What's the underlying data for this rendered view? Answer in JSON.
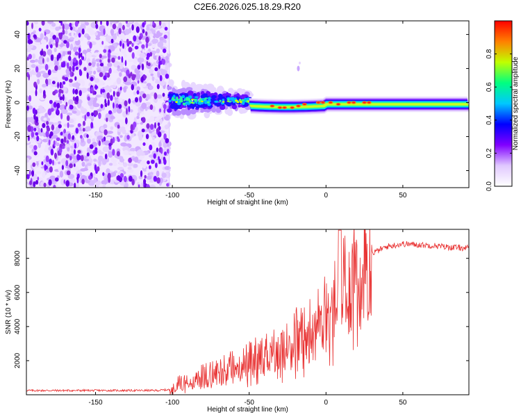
{
  "title": "C2E6.2026.025.18.29.R20",
  "chart_data": [
    {
      "type": "heatmap",
      "xlabel": "Height of straight line (km)",
      "ylabel": "Frequency (Hz)",
      "xlim": [
        -195,
        93
      ],
      "ylim": [
        -50,
        48
      ],
      "xticks": [
        -150,
        -100,
        -50,
        0,
        50
      ],
      "yticks": [
        -40,
        -20,
        0,
        20,
        40
      ],
      "colorbar": {
        "label": "Normalized spectral amplitude",
        "range": [
          0.0,
          1.0
        ],
        "ticks": [
          "0.0",
          "0.2",
          "0.4",
          "0.6",
          "0.8"
        ],
        "colors": [
          "#ffffff",
          "#e0c8ff",
          "#8000ff",
          "#0000ff",
          "#00c8ff",
          "#00ff80",
          "#c0ff00",
          "#ff8000",
          "#ff0000"
        ]
      },
      "regions": [
        {
          "name": "noise",
          "x_range": [
            -195,
            -102
          ],
          "freq_range": [
            -50,
            48
          ],
          "amplitude": 0.1
        },
        {
          "name": "signal-onset",
          "x_range": [
            -102,
            -50
          ],
          "freq_center": 0,
          "freq_halfwidth": 10,
          "amplitude": 0.45
        },
        {
          "name": "signal-track",
          "x_range": [
            -50,
            93
          ],
          "freq_center": -2,
          "freq_halfwidth": 3,
          "amplitude": 0.8
        },
        {
          "name": "isolated-blob",
          "x": -18,
          "freq": 20,
          "amplitude": 0.1
        }
      ]
    },
    {
      "type": "line",
      "xlabel": "Height of straight line (km)",
      "ylabel": "SNR (10 * v/v)",
      "xlim": [
        -195,
        93
      ],
      "ylim": [
        0,
        9700
      ],
      "xticks": [
        -150,
        -100,
        -50,
        0,
        50
      ],
      "yticks": [
        2000,
        4000,
        6000,
        8000
      ],
      "color": "#e83030",
      "x": [
        -195,
        -150,
        -110,
        -102,
        -95,
        -85,
        -75,
        -65,
        -55,
        -45,
        -35,
        -25,
        -15,
        -5,
        0,
        10,
        20,
        30,
        40,
        50,
        60,
        70,
        80,
        93
      ],
      "y": [
        250,
        250,
        250,
        300,
        600,
        900,
        1200,
        1500,
        1800,
        2200,
        2600,
        3000,
        3600,
        4300,
        4900,
        6000,
        7000,
        8300,
        8700,
        8850,
        8800,
        8750,
        8650,
        8600
      ]
    }
  ]
}
